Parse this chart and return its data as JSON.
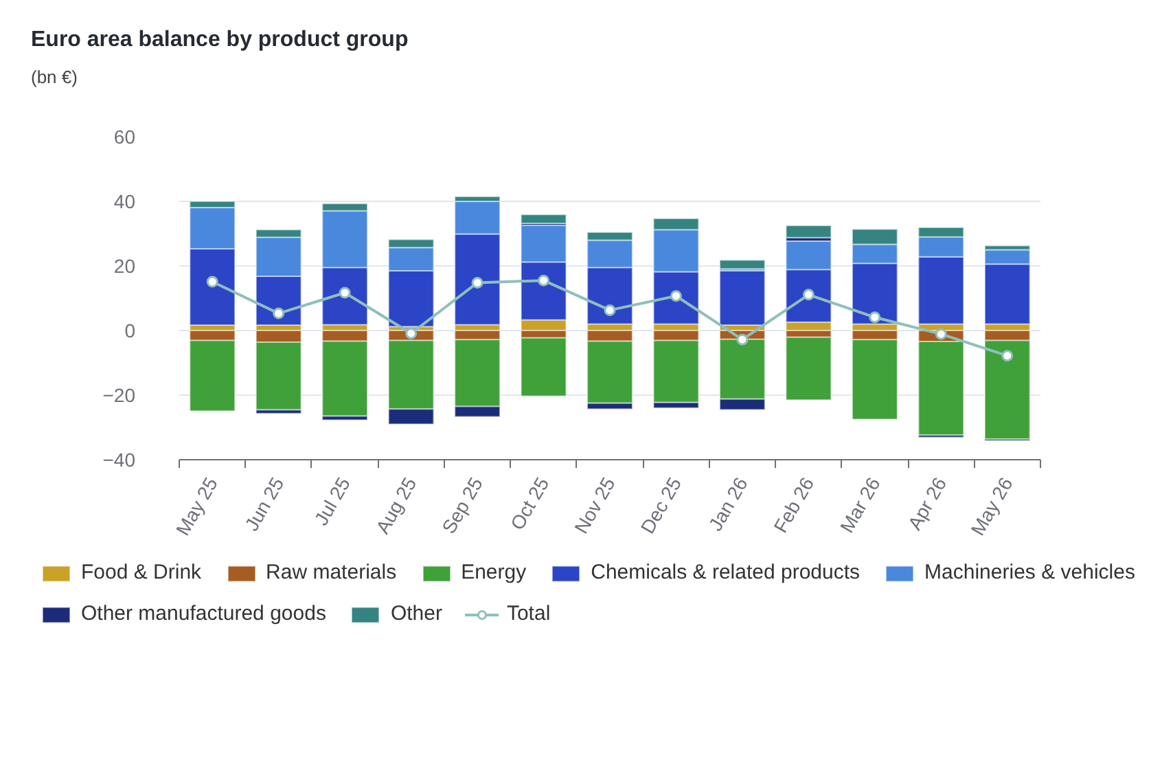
{
  "chart_data": {
    "type": "bar",
    "stacked": true,
    "title": "Euro area balance by product group",
    "subtitle": "(bn €)",
    "categories": [
      "May 25",
      "Jun 25",
      "Jul 25",
      "Aug 25",
      "Sep 25",
      "Oct 25",
      "Nov 25",
      "Dec 25",
      "Jan 26",
      "Feb 26",
      "Mar 26",
      "Apr 26",
      "May 26"
    ],
    "ylim": [
      -40,
      60
    ],
    "yticks": [
      -40,
      -20,
      0,
      20,
      40,
      60
    ],
    "grid": "y",
    "legend": "bottom",
    "series": [
      {
        "name": "Food & Drink",
        "color": "#c9a227",
        "values": [
          1.7,
          1.7,
          1.8,
          1.2,
          1.8,
          3.3,
          2.0,
          2.0,
          1.7,
          2.6,
          2.0,
          2.0,
          2.0
        ]
      },
      {
        "name": "Raw materials",
        "color": "#a65c22",
        "values": [
          -3.1,
          -3.6,
          -3.3,
          -3.1,
          -2.8,
          -2.3,
          -3.3,
          -3.1,
          -2.7,
          -2.1,
          -2.8,
          -3.4,
          -3.1
        ]
      },
      {
        "name": "Energy",
        "color": "#40a03a",
        "values": [
          -21.8,
          -21.0,
          -23.2,
          -21.2,
          -20.7,
          -18.0,
          -19.2,
          -19.2,
          -18.5,
          -19.4,
          -24.7,
          -29.0,
          -30.5
        ]
      },
      {
        "name": "Chemicals & related products",
        "color": "#2b45c6",
        "values": [
          23.6,
          15.1,
          17.7,
          17.3,
          28.1,
          17.9,
          17.5,
          16.2,
          16.8,
          16.3,
          18.8,
          20.8,
          18.6
        ]
      },
      {
        "name": "Machineries & vehicles",
        "color": "#4a88de",
        "values": [
          12.8,
          12.1,
          17.6,
          7.2,
          10.1,
          11.4,
          8.5,
          13.0,
          0.6,
          8.8,
          5.9,
          6.2,
          4.4
        ]
      },
      {
        "name": "Other manufactured goods",
        "color": "#1b2c7a",
        "values": [
          null,
          -1.1,
          -1.2,
          -4.7,
          -3.2,
          0.6,
          -1.8,
          -1.7,
          -3.3,
          1.1,
          null,
          -0.7,
          -0.5
        ]
      },
      {
        "name": "Other",
        "color": "#358482",
        "values": [
          1.9,
          2.3,
          2.2,
          2.5,
          1.5,
          2.7,
          2.4,
          3.5,
          2.7,
          3.7,
          4.7,
          2.9,
          1.3
        ]
      },
      {
        "name": "Total",
        "type": "line",
        "marker": "circle",
        "color": "#8fbfbd",
        "values": [
          15.1,
          5.3,
          11.7,
          -0.9,
          14.8,
          15.5,
          6.3,
          10.7,
          -2.8,
          11.1,
          4.1,
          -1.1,
          -7.8
        ]
      }
    ]
  }
}
